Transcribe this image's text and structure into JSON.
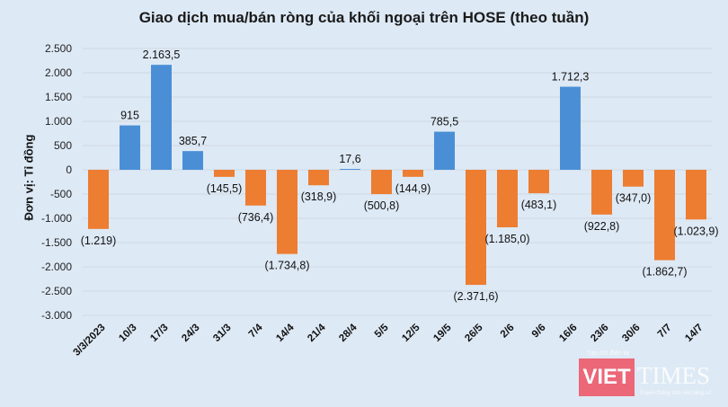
{
  "chart_data": {
    "type": "bar",
    "title": "Giao dịch mua/bán ròng của khối ngoại trên HOSE (theo tuần)",
    "ylabel": "Đơn vị: Tỉ đồng",
    "xlabel": "",
    "ylim": [
      -3000,
      2500
    ],
    "yticks": [
      2500,
      2000,
      1500,
      1000,
      500,
      0,
      -500,
      -1000,
      -1500,
      -2000,
      -2500,
      -3000
    ],
    "ytick_labels": [
      "2.500",
      "2.000",
      "1.500",
      "1.000",
      "500",
      "0",
      "-500",
      "-1.000",
      "-1.500",
      "-2.000",
      "-2.500",
      "-3.000"
    ],
    "grid": true,
    "categories": [
      "3/3/2023",
      "10/3",
      "17/3",
      "24/3",
      "31/3",
      "7/4",
      "14/4",
      "21/4",
      "28/4",
      "5/5",
      "12/5",
      "19/5",
      "26/5",
      "2/6",
      "9/6",
      "16/6",
      "23/6",
      "30/6",
      "7/7",
      "14/7"
    ],
    "values": [
      -1219,
      915,
      2163.5,
      385.7,
      -145.5,
      -736.4,
      -1734.8,
      -318.9,
      17.6,
      -500.8,
      -144.9,
      785.5,
      -2371.6,
      -1185.0,
      -483.1,
      1712.3,
      -922.8,
      -347.0,
      -1862.7,
      -1023.9
    ],
    "data_labels": [
      "(1.219)",
      "915",
      "2.163,5",
      "385,7",
      "(145,5)",
      "(736,4)",
      "(1.734,8)",
      "(318,9)",
      "17,6",
      "(500,8)",
      "(144,9)",
      "785,5",
      "(2.371,6)",
      "(1.185,0)",
      "(483,1)",
      "1.712,3",
      "(922,8)",
      "(347,0)",
      "(1.862,7)",
      "(1.023,9)"
    ],
    "colors": {
      "positive": "#4a8fd6",
      "negative": "#ed7d31"
    }
  },
  "logo": {
    "tagline": "Tạp chí điện tử",
    "brand_left": "VIET",
    "brand_right": "TIMES",
    "slogan": "Truyền thông trên nền tảng số"
  }
}
